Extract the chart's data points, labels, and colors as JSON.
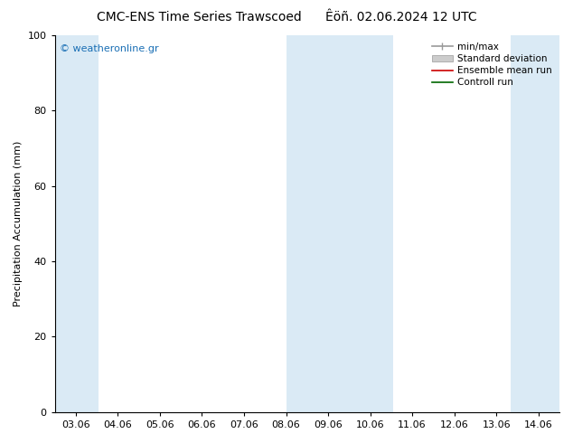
{
  "title": "CMC-ENS Time Series Trawscoed      Êöñ. 02.06.2024 12 UTC",
  "ylabel": "Precipitation Accumulation (mm)",
  "ylim": [
    0,
    100
  ],
  "yticks": [
    0,
    20,
    40,
    60,
    80,
    100
  ],
  "xtick_labels": [
    "03.06",
    "04.06",
    "05.06",
    "06.06",
    "07.06",
    "08.06",
    "09.06",
    "10.06",
    "11.06",
    "12.06",
    "13.06",
    "14.06"
  ],
  "shade_color": "#daeaf5",
  "background_color": "#ffffff",
  "watermark": "© weatheronline.gr",
  "watermark_color": "#1a6fb5",
  "legend_items": [
    {
      "label": "min/max",
      "color": "#999999",
      "lw": 1.2
    },
    {
      "label": "Standard deviation",
      "color": "#cccccc",
      "lw": 6
    },
    {
      "label": "Ensemble mean run",
      "color": "#cc0000",
      "lw": 1.2
    },
    {
      "label": "Controll run",
      "color": "#006600",
      "lw": 1.2
    }
  ],
  "title_fontsize": 10,
  "ylabel_fontsize": 8,
  "tick_fontsize": 8,
  "legend_fontsize": 7.5
}
